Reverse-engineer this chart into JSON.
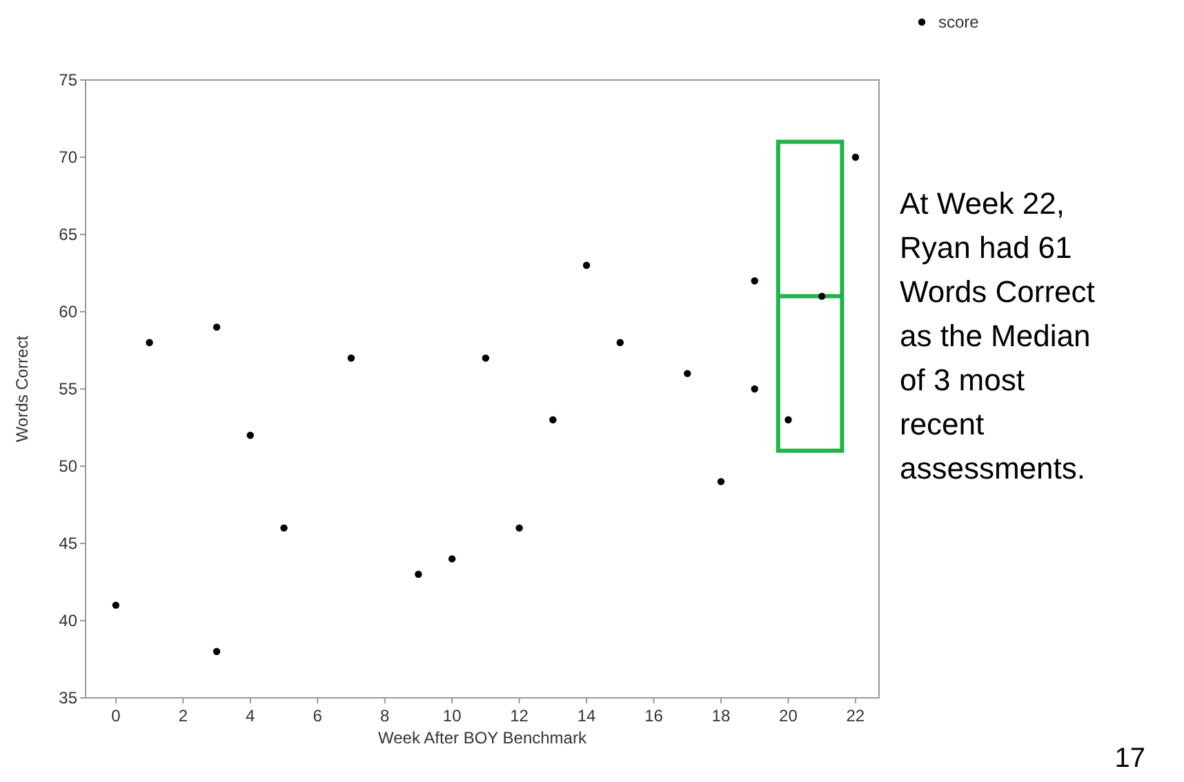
{
  "chart_data": {
    "type": "scatter",
    "xlabel": "Week After BOY Benchmark",
    "ylabel": "Words Correct",
    "x": [
      0,
      1,
      3,
      3,
      4,
      5,
      7,
      9,
      10,
      11,
      12,
      13,
      14,
      15,
      17,
      18,
      19,
      19,
      20,
      21,
      22
    ],
    "series": [
      {
        "name": "score",
        "color": "#000000",
        "values": [
          41,
          58,
          59,
          38,
          52,
          46,
          57,
          43,
          44,
          57,
          46,
          53,
          63,
          58,
          56,
          49,
          62,
          55,
          53,
          61,
          70
        ]
      }
    ],
    "xlim": [
      -0.9,
      22.7
    ],
    "xticks": [
      0,
      2,
      4,
      6,
      8,
      10,
      12,
      14,
      16,
      18,
      20,
      22
    ],
    "ylim": [
      35,
      75
    ],
    "yticks": [
      35,
      40,
      45,
      50,
      55,
      60,
      65,
      70,
      75
    ],
    "ref_lines": [
      {
        "axis": "y",
        "value": 61,
        "color": "#22b14c"
      }
    ],
    "grid": false,
    "legend": "top right",
    "marker": "circle",
    "annotations": [
      "At Week 22, Ryan had 61 Words Correct as the Median of 3 most recent assessments.",
      "17"
    ]
  }
}
